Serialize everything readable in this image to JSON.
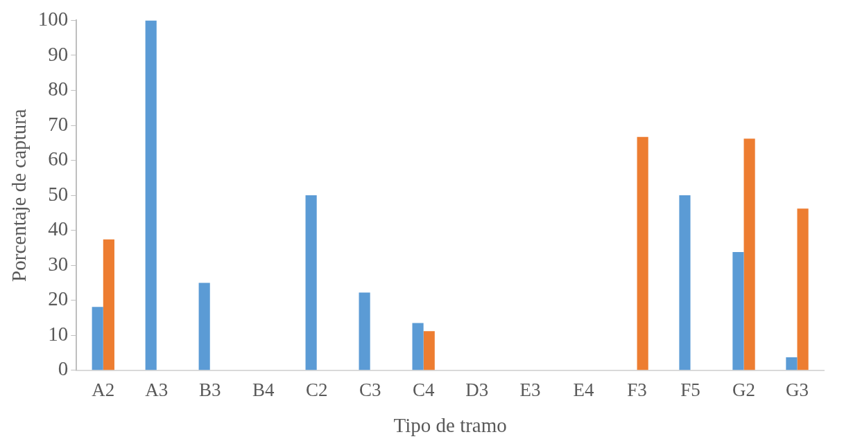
{
  "chart_data": {
    "type": "bar",
    "xlabel": "Tipo de tramo",
    "ylabel": "Porcentaje de captura",
    "categories": [
      "A2",
      "A3",
      "B3",
      "B4",
      "C2",
      "C3",
      "C4",
      "D3",
      "E3",
      "E4",
      "F3",
      "F5",
      "G2",
      "G3"
    ],
    "series": [
      {
        "color": "#5b9bd5",
        "values": [
          18.1,
          100,
          25,
          0,
          50,
          22.2,
          13.5,
          0,
          0,
          0,
          0,
          50,
          33.8,
          3.7
        ]
      },
      {
        "color": "#ed7d31",
        "values": [
          37.4,
          0,
          0,
          0,
          0,
          0,
          11.2,
          0,
          0,
          0,
          66.7,
          0,
          66.2,
          46.2
        ]
      }
    ],
    "ylim": [
      0,
      100
    ],
    "yticks": [
      0,
      10,
      20,
      30,
      40,
      50,
      60,
      70,
      80,
      90,
      100
    ],
    "grid": false,
    "legend": false
  }
}
